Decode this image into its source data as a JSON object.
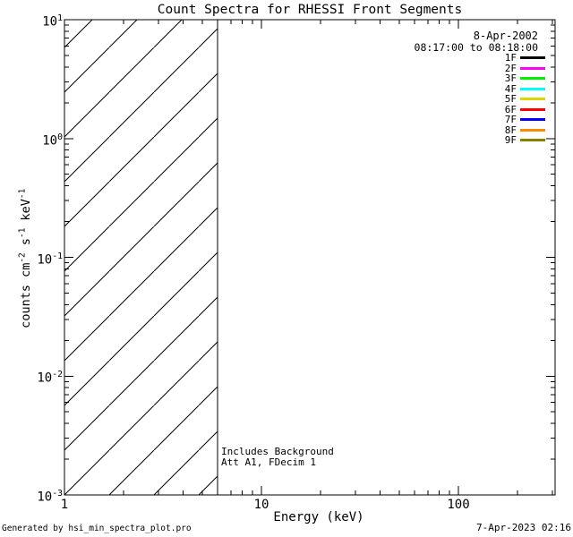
{
  "footer": {
    "left": "Generated by hsi_min_spectra_plot.pro",
    "right": "7-Apr-2023 02:16"
  },
  "chart_data": {
    "type": "line",
    "title": "Count Spectra for RHESSI Front Segments",
    "xlabel": "Energy (keV)",
    "ylabel": "counts cm^-2 s^-1 keV^-1",
    "xscale": "log",
    "yscale": "log",
    "xlim": [
      1,
      310
    ],
    "ylim": [
      0.001,
      10
    ],
    "grid": false,
    "x_major_ticks": [
      1,
      10,
      100
    ],
    "x_tick_labels": [
      "1",
      "10",
      "100"
    ],
    "y_tick_exponents": [
      1,
      0,
      -1,
      -2,
      -3
    ],
    "legend": {
      "position": "top-right",
      "date": "8-Apr-2002",
      "time_range": "08:17:00 to 08:18:00",
      "entries": [
        {
          "label": "1F",
          "color": "#000000"
        },
        {
          "label": "2F",
          "color": "#ff00ff"
        },
        {
          "label": "3F",
          "color": "#00ee00"
        },
        {
          "label": "4F",
          "color": "#00ffff"
        },
        {
          "label": "5F",
          "color": "#d8d800"
        },
        {
          "label": "6F",
          "color": "#ff0000"
        },
        {
          "label": "7F",
          "color": "#0000ff"
        },
        {
          "label": "8F",
          "color": "#ff8c00"
        },
        {
          "label": "9F",
          "color": "#8a8000"
        }
      ]
    },
    "series": [
      {
        "name": "1F",
        "color": "#000000",
        "values": []
      },
      {
        "name": "2F",
        "color": "#ff00ff",
        "values": []
      },
      {
        "name": "3F",
        "color": "#00ee00",
        "values": []
      },
      {
        "name": "4F",
        "color": "#00ffff",
        "values": []
      },
      {
        "name": "5F",
        "color": "#d8d800",
        "values": []
      },
      {
        "name": "6F",
        "color": "#ff0000",
        "values": []
      },
      {
        "name": "7F",
        "color": "#0000ff",
        "values": []
      },
      {
        "name": "8F",
        "color": "#ff8c00",
        "values": []
      },
      {
        "name": "9F",
        "color": "#8a8000",
        "values": []
      }
    ],
    "hatch_region": {
      "x_min": 1,
      "x_max": 6,
      "style": "diagonal-hatch"
    },
    "cutoff_line_x": 6,
    "annotations": [
      "Includes Background",
      "Att A1, FDecim 1"
    ],
    "axis_color": "#000000",
    "background_color": "#ffffff"
  }
}
